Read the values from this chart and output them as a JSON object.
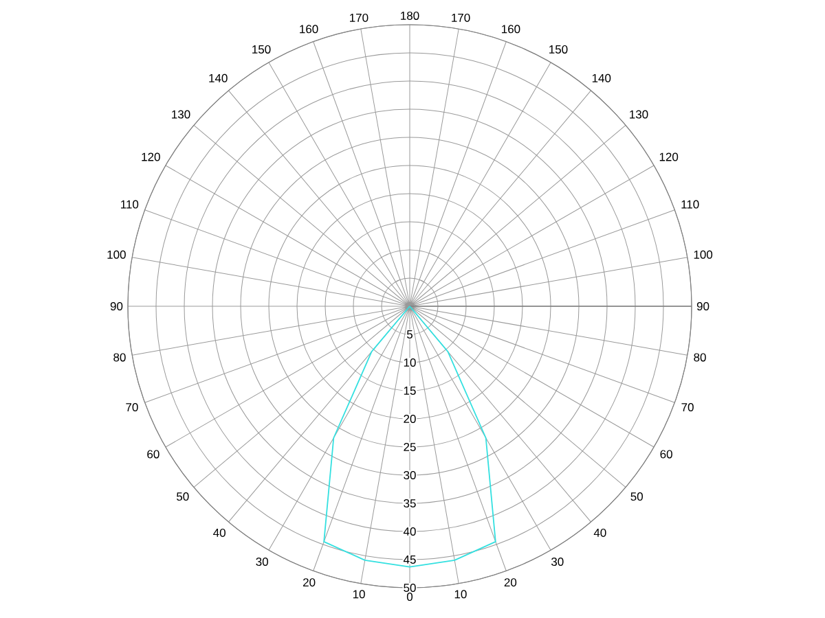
{
  "chart_data": {
    "type": "radar",
    "categories": [
      "180",
      "170",
      "160",
      "150",
      "140",
      "130",
      "120",
      "110",
      "100",
      "90",
      "80",
      "70",
      "60",
      "50",
      "40",
      "30",
      "20",
      "10",
      "0",
      "10",
      "20",
      "30",
      "40",
      "50",
      "60",
      "70",
      "80",
      "90",
      "100",
      "110",
      "120",
      "130",
      "140",
      "150",
      "160",
      "170"
    ],
    "series": [
      {
        "color": "#33e0e0",
        "values": [
          0,
          0,
          0,
          0,
          0,
          0,
          0,
          0,
          0,
          0,
          0,
          0,
          0,
          0,
          10.5,
          27,
          44.5,
          45.8,
          46.3,
          45.8,
          44.5,
          27,
          10.5,
          0,
          0,
          0,
          0,
          0,
          0,
          0,
          0,
          0,
          0,
          0,
          0,
          0
        ]
      }
    ],
    "ylim": [
      0,
      50
    ],
    "yticks": [
      5,
      10,
      15,
      20,
      25,
      30,
      35,
      40,
      45,
      50
    ],
    "grid": true
  }
}
